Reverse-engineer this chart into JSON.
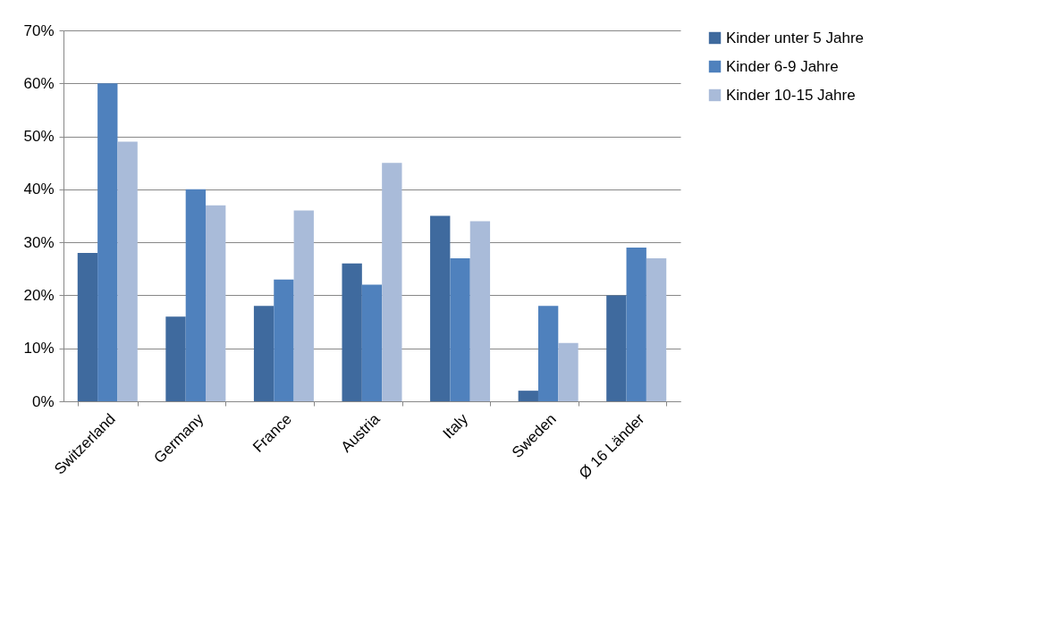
{
  "chart_data": {
    "type": "bar",
    "categories": [
      "Switzerland",
      "Germany",
      "France",
      "Austria",
      "Italy",
      "Sweden",
      "Ø 16 Länder"
    ],
    "series": [
      {
        "name": "Kinder unter 5 Jahre",
        "color": "#3f6a9e",
        "values": [
          28,
          16,
          18,
          26,
          35,
          2,
          20
        ]
      },
      {
        "name": "Kinder 6-9 Jahre",
        "color": "#4f81bd",
        "values": [
          60,
          40,
          23,
          22,
          27,
          18,
          29
        ]
      },
      {
        "name": "Kinder 10-15 Jahre",
        "color": "#a9bbd9",
        "values": [
          49,
          37,
          36,
          45,
          34,
          11,
          27
        ]
      }
    ],
    "ylim": [
      0,
      70
    ],
    "yticks": [
      {
        "value": 0,
        "label": "0%"
      },
      {
        "value": 10,
        "label": "10%"
      },
      {
        "value": 20,
        "label": "20%"
      },
      {
        "value": 30,
        "label": "30%"
      },
      {
        "value": 40,
        "label": "40%"
      },
      {
        "value": 50,
        "label": "50%"
      },
      {
        "value": 60,
        "label": "60%"
      },
      {
        "value": 70,
        "label": "70%"
      }
    ],
    "grid": "y",
    "legend": "right"
  }
}
